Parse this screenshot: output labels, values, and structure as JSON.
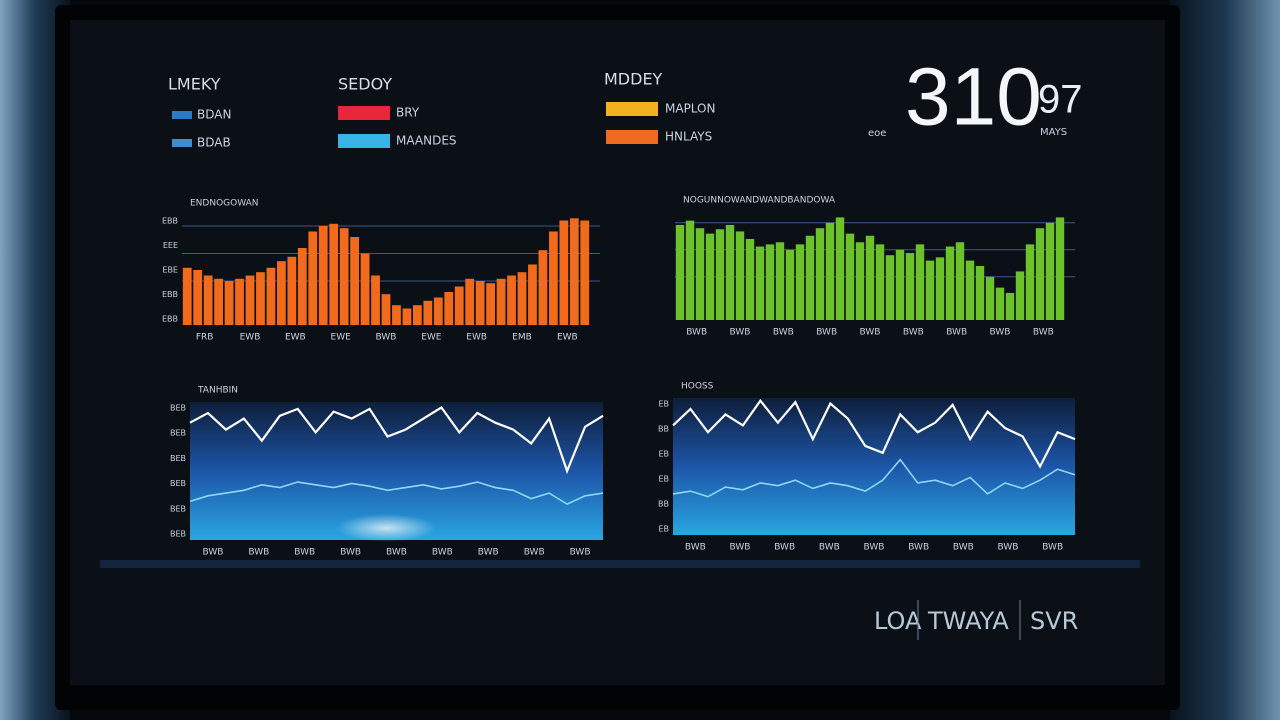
{
  "header": {
    "groups": [
      {
        "title": "LMEKY",
        "items": [
          {
            "label": "BDAN",
            "color": "#2a7cc9"
          },
          {
            "label": "BDAB",
            "color": "#3f8ccf"
          }
        ]
      },
      {
        "title": "SEDOY",
        "items": [
          {
            "label": "BRY",
            "color": "#e8283a"
          },
          {
            "label": "MAANDES",
            "color": "#39b3e6"
          }
        ]
      },
      {
        "title": "MDDEY",
        "items": [
          {
            "label": "MAPLON",
            "color": "#f2b21e"
          },
          {
            "label": "HNLAYS",
            "color": "#f06a1e"
          }
        ]
      }
    ]
  },
  "big_number": {
    "value": "310",
    "suffix": "97",
    "left_label": "eoe",
    "right_label": "MAYS"
  },
  "chart_data": [
    {
      "type": "bar",
      "title": "ENDNOGOWAN",
      "color": "#f26b1d",
      "ylim": [
        0,
        100
      ],
      "values": [
        52,
        50,
        45,
        42,
        40,
        42,
        45,
        48,
        52,
        58,
        62,
        70,
        85,
        90,
        92,
        88,
        80,
        65,
        45,
        28,
        18,
        15,
        18,
        22,
        25,
        30,
        35,
        42,
        40,
        38,
        42,
        45,
        48,
        55,
        68,
        85,
        95,
        97,
        95
      ],
      "ytick_labels": [
        "EBB",
        "EEE",
        "EBE",
        "EBB",
        "EBB"
      ],
      "xtick_labels": [
        "FRB",
        "EWB",
        "EWB",
        "EWE",
        "BWB",
        "EWE",
        "EWB",
        "EMB",
        "EWB"
      ]
    },
    {
      "type": "bar",
      "title": "NOGUNNOWANDWANDBANDOWA",
      "color": "#6cc22a",
      "ylim": [
        0,
        100
      ],
      "values": [
        88,
        92,
        85,
        80,
        84,
        88,
        82,
        75,
        68,
        70,
        72,
        65,
        70,
        78,
        85,
        90,
        95,
        80,
        72,
        78,
        70,
        60,
        65,
        62,
        70,
        55,
        58,
        68,
        72,
        55,
        50,
        40,
        30,
        25,
        45,
        70,
        85,
        90,
        95
      ],
      "ytick_labels": [],
      "xtick_labels": [
        "BWB",
        "BWB",
        "BWB",
        "BWB",
        "BWB",
        "BWB",
        "BWB",
        "BWB",
        "BWB"
      ]
    },
    {
      "type": "line",
      "title": "TANHBIN",
      "ylim": [
        0,
        100
      ],
      "series": [
        {
          "color": "#ffffff",
          "values": [
            85,
            92,
            80,
            88,
            72,
            90,
            95,
            78,
            93,
            88,
            95,
            75,
            80,
            88,
            96,
            78,
            92,
            85,
            80,
            70,
            88,
            50,
            82,
            90
          ]
        },
        {
          "color": "#8fd8ff",
          "values": [
            28,
            32,
            34,
            36,
            40,
            38,
            42,
            40,
            38,
            41,
            39,
            36,
            38,
            40,
            37,
            39,
            42,
            38,
            36,
            30,
            34,
            26,
            32,
            34
          ]
        }
      ],
      "ytick_labels": [
        "BEB",
        "BEB",
        "BEB",
        "BEB",
        "BEB",
        "BEB"
      ],
      "xtick_labels": [
        "BWB",
        "BWB",
        "BWB",
        "BWB",
        "BWB",
        "BWB",
        "BWB",
        "BWB",
        "BWB"
      ]
    },
    {
      "type": "line",
      "title": "HOOSS",
      "ylim": [
        0,
        100
      ],
      "series": [
        {
          "color": "#ffffff",
          "values": [
            80,
            92,
            75,
            88,
            80,
            98,
            82,
            97,
            70,
            96,
            85,
            65,
            60,
            88,
            75,
            82,
            95,
            70,
            90,
            78,
            72,
            50,
            75,
            70
          ]
        },
        {
          "color": "#8fd8ff",
          "values": [
            30,
            32,
            28,
            35,
            33,
            38,
            36,
            40,
            34,
            38,
            36,
            32,
            40,
            55,
            38,
            40,
            36,
            42,
            30,
            38,
            34,
            40,
            48,
            44
          ]
        }
      ],
      "ytick_labels": [
        "EB",
        "BB",
        "EB",
        "EB",
        "BB",
        "EB"
      ],
      "xtick_labels": [
        "BWB",
        "BWB",
        "BWB",
        "BWB",
        "BWB",
        "BWB",
        "BWB",
        "BWB",
        "BWB"
      ]
    }
  ],
  "footer": {
    "labels": [
      "LOA",
      "TWAYA",
      "SVR"
    ]
  }
}
